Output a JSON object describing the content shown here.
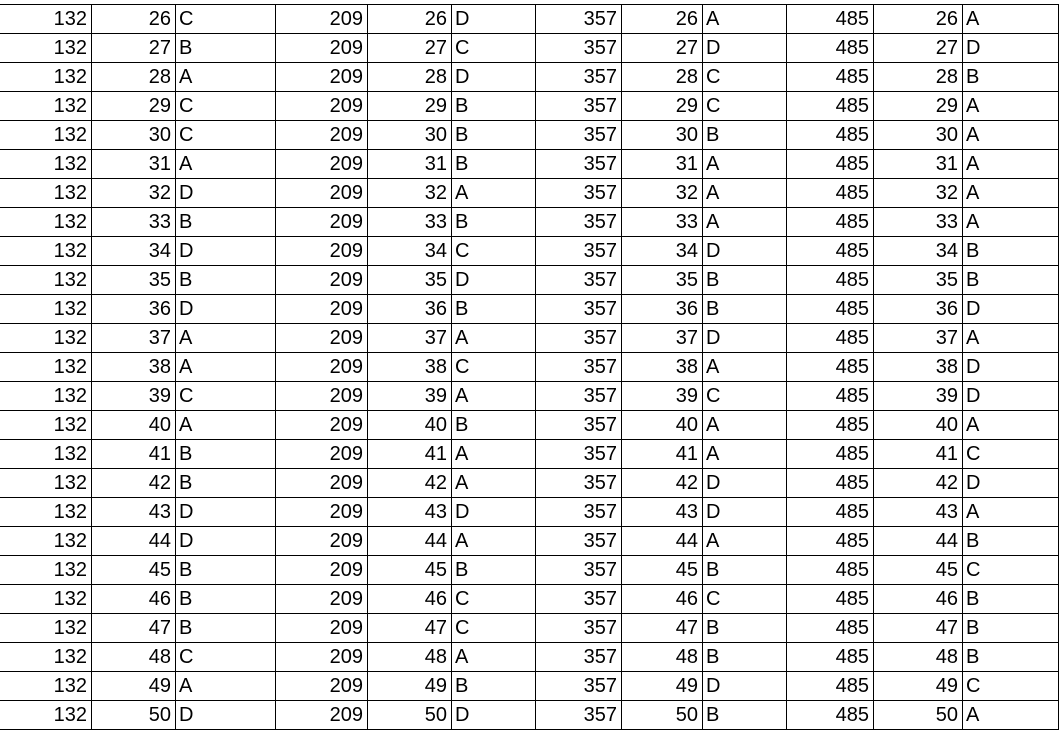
{
  "blocks": [
    {
      "code": "132",
      "answers": [
        "C",
        "B",
        "A",
        "C",
        "C",
        "A",
        "D",
        "B",
        "D",
        "B",
        "D",
        "A",
        "A",
        "C",
        "A",
        "B",
        "B",
        "D",
        "D",
        "B",
        "B",
        "B",
        "C",
        "A",
        "D"
      ]
    },
    {
      "code": "209",
      "answers": [
        "D",
        "C",
        "D",
        "B",
        "B",
        "B",
        "A",
        "B",
        "C",
        "D",
        "B",
        "A",
        "C",
        "A",
        "B",
        "A",
        "A",
        "D",
        "A",
        "B",
        "C",
        "C",
        "A",
        "B",
        "D"
      ]
    },
    {
      "code": "357",
      "answers": [
        "A",
        "D",
        "C",
        "C",
        "B",
        "A",
        "A",
        "A",
        "D",
        "B",
        "B",
        "D",
        "A",
        "C",
        "A",
        "A",
        "D",
        "D",
        "A",
        "B",
        "C",
        "B",
        "B",
        "D",
        "B"
      ]
    },
    {
      "code": "485",
      "answers": [
        "A",
        "D",
        "B",
        "A",
        "A",
        "A",
        "A",
        "A",
        "B",
        "B",
        "D",
        "A",
        "D",
        "D",
        "A",
        "C",
        "D",
        "A",
        "B",
        "C",
        "B",
        "B",
        "B",
        "C",
        "A"
      ]
    }
  ],
  "questions": [
    "26",
    "27",
    "28",
    "29",
    "30",
    "31",
    "32",
    "33",
    "34",
    "35",
    "36",
    "37",
    "38",
    "39",
    "40",
    "41",
    "42",
    "43",
    "44",
    "45",
    "46",
    "47",
    "48",
    "49",
    "50"
  ]
}
